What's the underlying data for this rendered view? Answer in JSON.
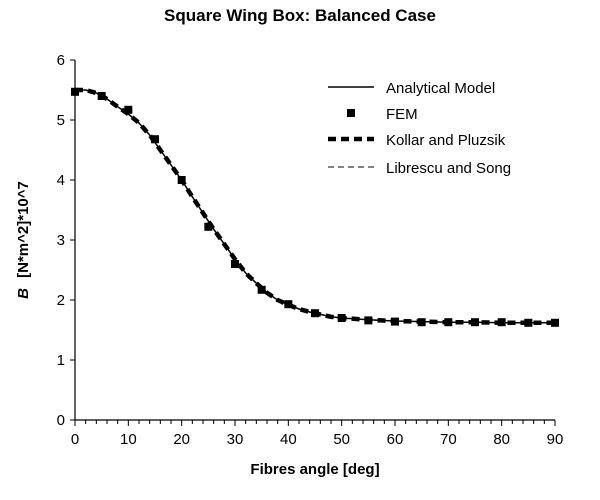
{
  "chart_data": {
    "type": "line",
    "title": "Square Wing Box: Balanced Case",
    "xlabel": "Fibres angle [deg]",
    "ylabel_symbol": "B",
    "ylabel_unit": "[N*m^2]*10^7",
    "xlim": [
      0,
      90
    ],
    "ylim": [
      0,
      6
    ],
    "x_ticks": [
      0,
      10,
      20,
      30,
      40,
      50,
      60,
      70,
      80,
      90
    ],
    "y_ticks": [
      0,
      1,
      2,
      3,
      4,
      5,
      6
    ],
    "grid": false,
    "legend_position": "top-right",
    "series": [
      {
        "name": "Analytical Model",
        "style": "solid",
        "x": [
          0,
          2,
          4,
          6,
          8,
          10,
          12,
          14,
          16,
          18,
          20,
          22,
          24,
          26,
          28,
          30,
          32,
          34,
          36,
          38,
          40,
          42,
          44,
          46,
          48,
          50,
          55,
          60,
          65,
          70,
          75,
          80,
          85,
          90
        ],
        "y": [
          5.5,
          5.5,
          5.45,
          5.35,
          5.22,
          5.1,
          4.95,
          4.75,
          4.5,
          4.25,
          4.0,
          3.72,
          3.45,
          3.18,
          2.93,
          2.68,
          2.45,
          2.28,
          2.12,
          2.0,
          1.92,
          1.85,
          1.8,
          1.76,
          1.72,
          1.7,
          1.67,
          1.65,
          1.64,
          1.63,
          1.63,
          1.62,
          1.62,
          1.62
        ]
      },
      {
        "name": "FEM",
        "style": "markers",
        "x": [
          0,
          5,
          10,
          15,
          20,
          25,
          30,
          35,
          40,
          45,
          50,
          55,
          60,
          65,
          70,
          75,
          80,
          85,
          90
        ],
        "y": [
          5.47,
          5.4,
          5.17,
          4.68,
          4.0,
          3.22,
          2.6,
          2.17,
          1.93,
          1.78,
          1.7,
          1.66,
          1.64,
          1.63,
          1.63,
          1.63,
          1.63,
          1.62,
          1.62
        ]
      },
      {
        "name": "Kollar and Pluzsik",
        "style": "bold-dash",
        "x": [
          0,
          2,
          4,
          6,
          8,
          10,
          12,
          14,
          16,
          18,
          20,
          22,
          24,
          26,
          28,
          30,
          32,
          34,
          36,
          38,
          40,
          42,
          44,
          46,
          48,
          50,
          55,
          60,
          65,
          70,
          75,
          80,
          85,
          90
        ],
        "y": [
          5.5,
          5.5,
          5.45,
          5.35,
          5.22,
          5.1,
          4.95,
          4.75,
          4.5,
          4.25,
          4.0,
          3.72,
          3.45,
          3.18,
          2.93,
          2.68,
          2.45,
          2.28,
          2.12,
          2.0,
          1.92,
          1.85,
          1.8,
          1.76,
          1.72,
          1.7,
          1.67,
          1.65,
          1.64,
          1.63,
          1.63,
          1.62,
          1.62,
          1.62
        ]
      },
      {
        "name": "Librescu and Song",
        "style": "thin-dash",
        "x": [
          0,
          2,
          4,
          6,
          8,
          10,
          12,
          14,
          16,
          18,
          20,
          22,
          24,
          26,
          28,
          30,
          32,
          34,
          36,
          38,
          40,
          42,
          44,
          46,
          48,
          50,
          55,
          60,
          65,
          70,
          75,
          80,
          85,
          90
        ],
        "y": [
          5.5,
          5.5,
          5.45,
          5.35,
          5.22,
          5.1,
          4.95,
          4.75,
          4.5,
          4.25,
          4.0,
          3.72,
          3.45,
          3.18,
          2.93,
          2.68,
          2.45,
          2.28,
          2.12,
          2.0,
          1.92,
          1.85,
          1.8,
          1.76,
          1.72,
          1.7,
          1.67,
          1.65,
          1.64,
          1.63,
          1.63,
          1.62,
          1.62,
          1.62
        ]
      }
    ]
  }
}
